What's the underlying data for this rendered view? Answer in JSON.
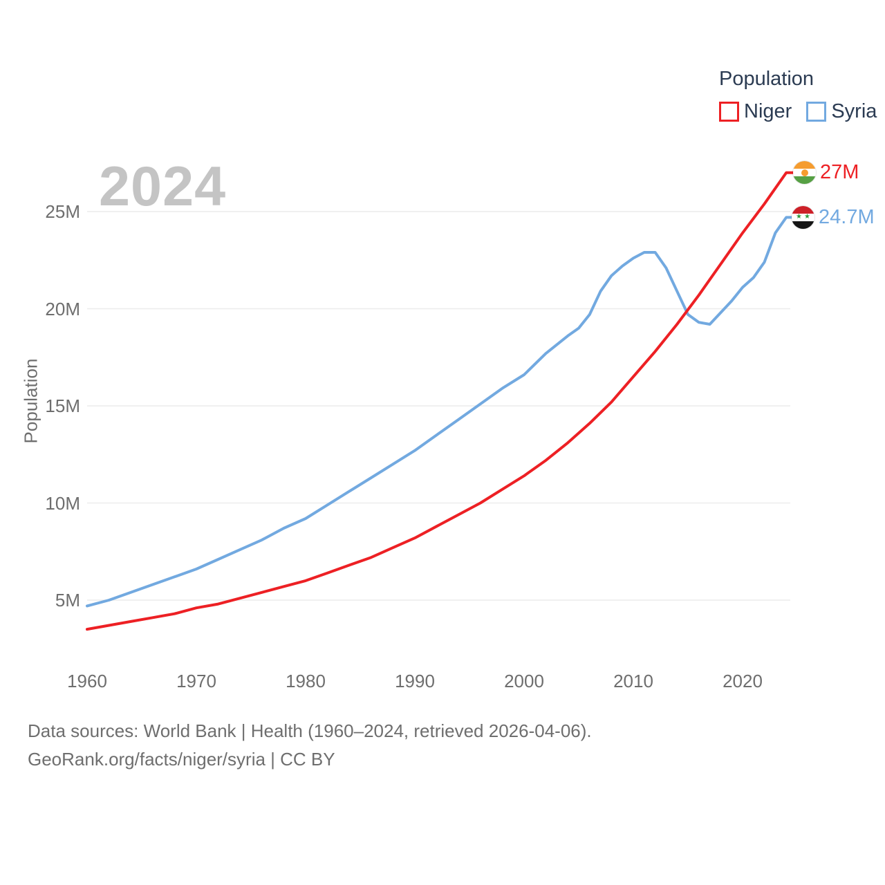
{
  "watermark": "2024",
  "legend": {
    "title": "Population"
  },
  "y_axis": {
    "title": "Population"
  },
  "footer": {
    "line1": "Data sources: World Bank | Health (1960–2024, retrieved 2026-04-06).",
    "line2": "GeoRank.org/facts/niger/syria | CC BY"
  },
  "colors": {
    "grid": "#ececec",
    "axis_text": "#6e6e6e",
    "legend_text": "#2b3b52",
    "watermark": "#c4c4c4"
  },
  "chart_data": {
    "type": "line",
    "title": "Population",
    "xlabel": "",
    "ylabel": "Population",
    "xlim": [
      1960,
      2024
    ],
    "ylim": [
      3.4,
      28
    ],
    "grid": "horizontal",
    "legend_position": "top-right",
    "x_ticks": [
      1960,
      1970,
      1980,
      1990,
      2000,
      2010,
      2020
    ],
    "x_tick_labels": [
      "1960",
      "1970",
      "1980",
      "1990",
      "2000",
      "2010",
      "2020"
    ],
    "y_ticks": [
      5,
      10,
      15,
      20,
      25
    ],
    "y_tick_labels": [
      "5M",
      "10M",
      "15M",
      "20M",
      "25M"
    ],
    "series": [
      {
        "name": "Niger",
        "color": "#ed2024",
        "end_label": "27M",
        "flag_icon": "niger-flag-icon",
        "points": [
          [
            1960,
            3.5
          ],
          [
            1962,
            3.7
          ],
          [
            1964,
            3.9
          ],
          [
            1966,
            4.1
          ],
          [
            1968,
            4.3
          ],
          [
            1970,
            4.6
          ],
          [
            1972,
            4.8
          ],
          [
            1974,
            5.1
          ],
          [
            1976,
            5.4
          ],
          [
            1978,
            5.7
          ],
          [
            1980,
            6.0
          ],
          [
            1982,
            6.4
          ],
          [
            1984,
            6.8
          ],
          [
            1986,
            7.2
          ],
          [
            1988,
            7.7
          ],
          [
            1990,
            8.2
          ],
          [
            1992,
            8.8
          ],
          [
            1994,
            9.4
          ],
          [
            1996,
            10.0
          ],
          [
            1998,
            10.7
          ],
          [
            2000,
            11.4
          ],
          [
            2002,
            12.2
          ],
          [
            2004,
            13.1
          ],
          [
            2006,
            14.1
          ],
          [
            2008,
            15.2
          ],
          [
            2010,
            16.5
          ],
          [
            2012,
            17.8
          ],
          [
            2014,
            19.2
          ],
          [
            2016,
            20.7
          ],
          [
            2018,
            22.3
          ],
          [
            2020,
            23.9
          ],
          [
            2022,
            25.4
          ],
          [
            2024,
            27.0
          ]
        ]
      },
      {
        "name": "Syria",
        "color": "#72a9e0",
        "end_label": "24.7M",
        "flag_icon": "syria-flag-icon",
        "points": [
          [
            1960,
            4.7
          ],
          [
            1962,
            5.0
          ],
          [
            1964,
            5.4
          ],
          [
            1966,
            5.8
          ],
          [
            1968,
            6.2
          ],
          [
            1970,
            6.6
          ],
          [
            1972,
            7.1
          ],
          [
            1974,
            7.6
          ],
          [
            1976,
            8.1
          ],
          [
            1978,
            8.7
          ],
          [
            1980,
            9.2
          ],
          [
            1982,
            9.9
          ],
          [
            1984,
            10.6
          ],
          [
            1986,
            11.3
          ],
          [
            1988,
            12.0
          ],
          [
            1990,
            12.7
          ],
          [
            1992,
            13.5
          ],
          [
            1994,
            14.3
          ],
          [
            1996,
            15.1
          ],
          [
            1998,
            15.9
          ],
          [
            2000,
            16.6
          ],
          [
            2002,
            17.7
          ],
          [
            2004,
            18.6
          ],
          [
            2005,
            19.0
          ],
          [
            2006,
            19.7
          ],
          [
            2007,
            20.9
          ],
          [
            2008,
            21.7
          ],
          [
            2009,
            22.2
          ],
          [
            2010,
            22.6
          ],
          [
            2011,
            22.9
          ],
          [
            2012,
            22.9
          ],
          [
            2013,
            22.1
          ],
          [
            2014,
            20.9
          ],
          [
            2015,
            19.7
          ],
          [
            2016,
            19.3
          ],
          [
            2017,
            19.2
          ],
          [
            2018,
            19.8
          ],
          [
            2019,
            20.4
          ],
          [
            2020,
            21.1
          ],
          [
            2021,
            21.6
          ],
          [
            2022,
            22.4
          ],
          [
            2023,
            23.9
          ],
          [
            2024,
            24.7
          ]
        ]
      }
    ]
  }
}
